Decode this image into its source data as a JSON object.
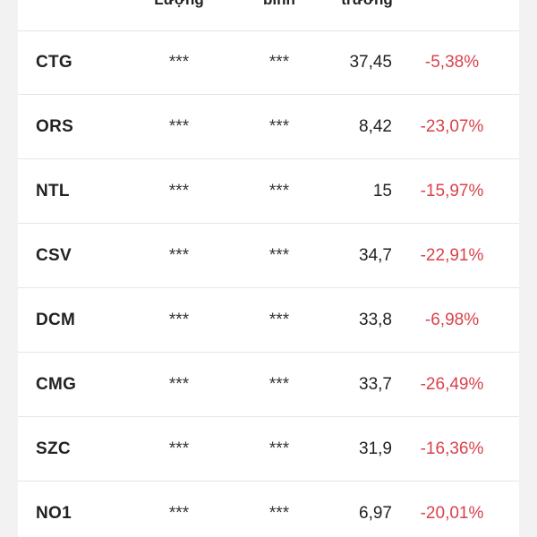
{
  "header": {
    "col1": "Lượng",
    "col2": "bình",
    "col3": "trường"
  },
  "rows": [
    {
      "symbol": "CTG",
      "c1": "***",
      "c2": "***",
      "price": "37,45",
      "change": "-5,38%"
    },
    {
      "symbol": "ORS",
      "c1": "***",
      "c2": "***",
      "price": "8,42",
      "change": "-23,07%"
    },
    {
      "symbol": "NTL",
      "c1": "***",
      "c2": "***",
      "price": "15",
      "change": "-15,97%"
    },
    {
      "symbol": "CSV",
      "c1": "***",
      "c2": "***",
      "price": "34,7",
      "change": "-22,91%"
    },
    {
      "symbol": "DCM",
      "c1": "***",
      "c2": "***",
      "price": "33,8",
      "change": "-6,98%"
    },
    {
      "symbol": "CMG",
      "c1": "***",
      "c2": "***",
      "price": "33,7",
      "change": "-26,49%"
    },
    {
      "symbol": "SZC",
      "c1": "***",
      "c2": "***",
      "price": "31,9",
      "change": "-16,36%"
    },
    {
      "symbol": "NO1",
      "c1": "***",
      "c2": "***",
      "price": "6,97",
      "change": "-20,01%"
    }
  ],
  "colors": {
    "negative": "#d9424c",
    "text": "#222222",
    "divider": "#e6e6e6"
  }
}
